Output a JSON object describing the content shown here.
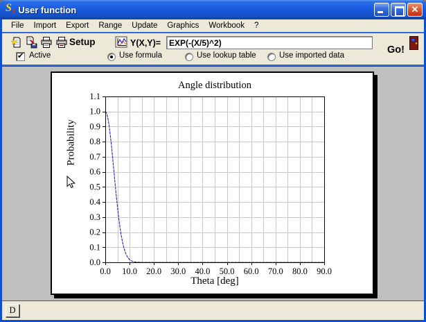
{
  "window": {
    "title": "User function",
    "icon": {
      "letter": "S",
      "subscript": "2"
    }
  },
  "menu": {
    "items": [
      "File",
      "Import",
      "Export",
      "Range",
      "Update",
      "Graphics",
      "Workbook",
      "?"
    ]
  },
  "toolbar": {
    "setup_label": "Setup",
    "formula_label": "Y(X,Y)=",
    "formula_value": "EXP(-(X/5)^2)",
    "go_label": "Go!",
    "icons": [
      "new-document",
      "import-save",
      "print",
      "print-setup",
      "graph",
      "exit-door"
    ]
  },
  "options": {
    "active_label": "Active",
    "active_checked": true,
    "radios": [
      {
        "label": "Use formula",
        "selected": true
      },
      {
        "label": "Use lookup table",
        "selected": false
      },
      {
        "label": "Use imported data",
        "selected": false
      }
    ]
  },
  "statusbar": {
    "button_label": "D"
  },
  "colors": {
    "titlebar_blue": "#1450c4",
    "window_border": "#0e4fd2",
    "ui_bg": "#ece9d8",
    "client_bg": "#bfbfbf",
    "curve_blue": "#2222cc",
    "grid_gray": "#c9c9c9"
  },
  "chart_data": {
    "type": "line",
    "title": "Angle distribution",
    "xlabel": "Theta [deg]",
    "ylabel": "Probability",
    "xlim": [
      0,
      90
    ],
    "ylim": [
      0.0,
      1.1
    ],
    "x_tick_values": [
      0,
      10,
      20,
      30,
      40,
      50,
      60,
      70,
      80,
      90
    ],
    "x_tick_labels": [
      "0.0",
      "10.0",
      "20.0",
      "30.0",
      "40.0",
      "50.0",
      "60.0",
      "70.0",
      "80.0",
      "90.0"
    ],
    "y_tick_values": [
      0.0,
      0.1,
      0.2,
      0.3,
      0.4,
      0.5,
      0.6,
      0.7,
      0.8,
      0.9,
      1.0,
      1.1
    ],
    "y_tick_labels": [
      "0.0",
      "0.1",
      "0.2",
      "0.3",
      "0.4",
      "0.5",
      "0.6",
      "0.7",
      "0.8",
      "0.9",
      "1.0",
      "1.1"
    ],
    "grid": true,
    "x_grid_step": 5,
    "legend": "none",
    "series": [
      {
        "name": "EXP(-(X/5)^2)",
        "color": "#2222cc",
        "x": [
          0,
          0.5,
          1,
          1.5,
          2,
          2.5,
          3,
          3.5,
          4,
          4.5,
          5,
          5.5,
          6,
          6.5,
          7,
          7.5,
          8,
          8.5,
          9,
          9.5,
          10,
          10.5,
          11,
          11.5,
          12,
          12.5,
          13,
          13.5,
          14,
          14.5,
          15,
          20,
          30,
          40,
          50,
          60,
          70,
          80,
          90
        ],
        "y": [
          1.0,
          0.99,
          0.9608,
          0.9139,
          0.8521,
          0.7788,
          0.6977,
          0.6126,
          0.5273,
          0.4449,
          0.3679,
          0.2982,
          0.2369,
          0.1845,
          0.1409,
          0.1054,
          0.0773,
          0.0556,
          0.0392,
          0.0271,
          0.0183,
          0.0122,
          0.0079,
          0.005,
          0.0032,
          0.0019,
          0.0012,
          0.0007,
          0.0004,
          0.0002,
          0.0001,
          0,
          0,
          0,
          0,
          0,
          0,
          0,
          0
        ]
      }
    ]
  }
}
